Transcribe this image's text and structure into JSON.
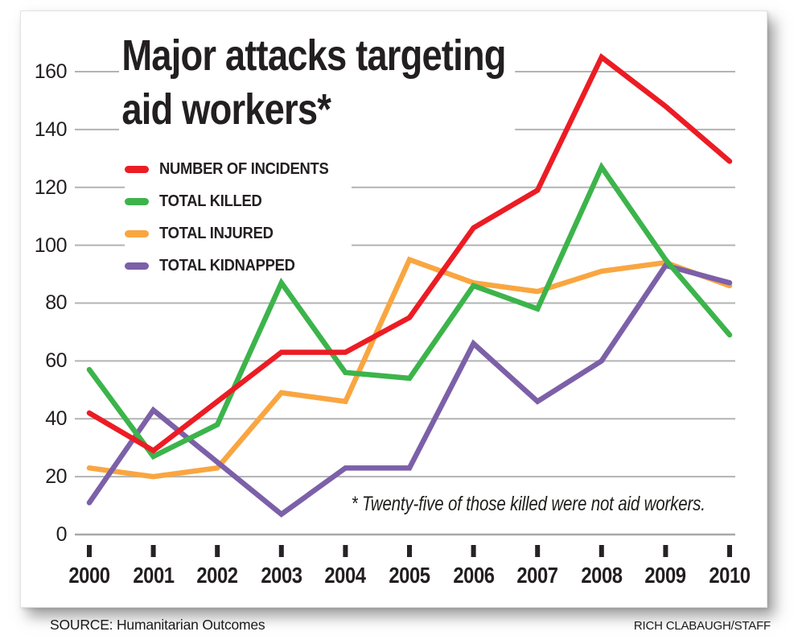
{
  "chart": {
    "title_line1": "Major attacks targeting",
    "title_line2": "aid workers*",
    "footnote": "* Twenty-five of those killed were not aid workers."
  },
  "chart_data": {
    "type": "line",
    "title": "Major attacks targeting aid workers*",
    "x": [
      2000,
      2001,
      2002,
      2003,
      2004,
      2005,
      2006,
      2007,
      2008,
      2009,
      2010
    ],
    "series": [
      {
        "name": "NUMBER OF INCIDENTS",
        "color": "#ec1c24",
        "values": [
          42,
          29,
          46,
          63,
          63,
          75,
          106,
          119,
          165,
          148,
          129
        ]
      },
      {
        "name": "TOTAL KILLED",
        "color": "#3cb44b",
        "values": [
          57,
          27,
          38,
          87,
          56,
          54,
          86,
          78,
          127,
          95,
          69
        ]
      },
      {
        "name": "TOTAL INJURED",
        "color": "#f9a641",
        "values": [
          23,
          20,
          23,
          49,
          46,
          95,
          87,
          84,
          91,
          94,
          86
        ]
      },
      {
        "name": "TOTAL KIDNAPPED",
        "color": "#7c60a8",
        "values": [
          11,
          43,
          25,
          7,
          23,
          23,
          66,
          46,
          60,
          93,
          87
        ]
      }
    ],
    "ylim": [
      0,
      160
    ],
    "yticks": [
      0,
      20,
      40,
      60,
      80,
      100,
      120,
      140,
      160
    ],
    "grid": true,
    "legend_position": "top-left",
    "xlabel": "",
    "ylabel": ""
  },
  "colors": {
    "gridline": "#b3b3b3",
    "zero_line": "#a8a8a8",
    "tick_mark": "#262226",
    "text": "#231f20"
  },
  "footer": {
    "source": "SOURCE: Humanitarian Outcomes",
    "credit": "RICH CLABAUGH/STAFF"
  }
}
